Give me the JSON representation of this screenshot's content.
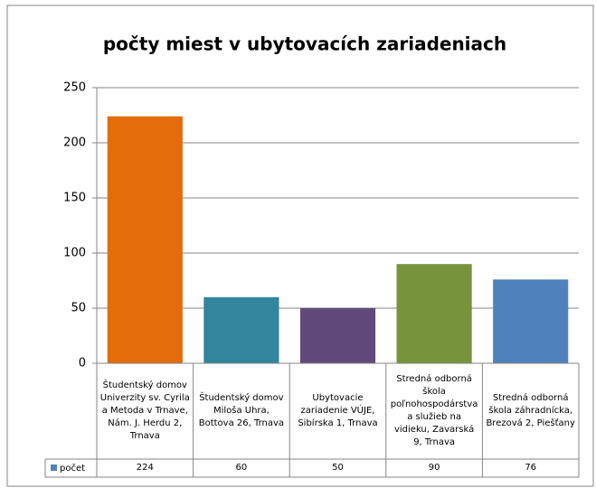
{
  "chart_data": {
    "type": "bar",
    "title": "počty miest v ubytovacích zariadeniach",
    "categories": [
      "Študentský domov Univerzity sv. Cyrila a Metoda v Trnave, Nám. J. Herdu 2, Trnava",
      "Študentský domov Miloša Uhra, Bottova 26, Trnava",
      "Ubytovacie zariadenie VÚJE, Sibírska 1, Trnava",
      "Stredná odborná škola poľnohospodárstva a služieb na vidieku, Zavarská 9, Trnava",
      "Stredná odborná škola záhradnícka, Brezová 2, Piešťany"
    ],
    "series": [
      {
        "name": "počet",
        "color": "#4f81bd",
        "values": [
          224,
          60,
          50,
          90,
          76
        ]
      }
    ],
    "bar_colors": [
      "#e46c0a",
      "#31859c",
      "#604a7b",
      "#77933c",
      "#4f81bd"
    ],
    "ylim": [
      0,
      250
    ],
    "yticks": [
      0,
      50,
      100,
      150,
      200,
      250
    ],
    "grid": true
  }
}
